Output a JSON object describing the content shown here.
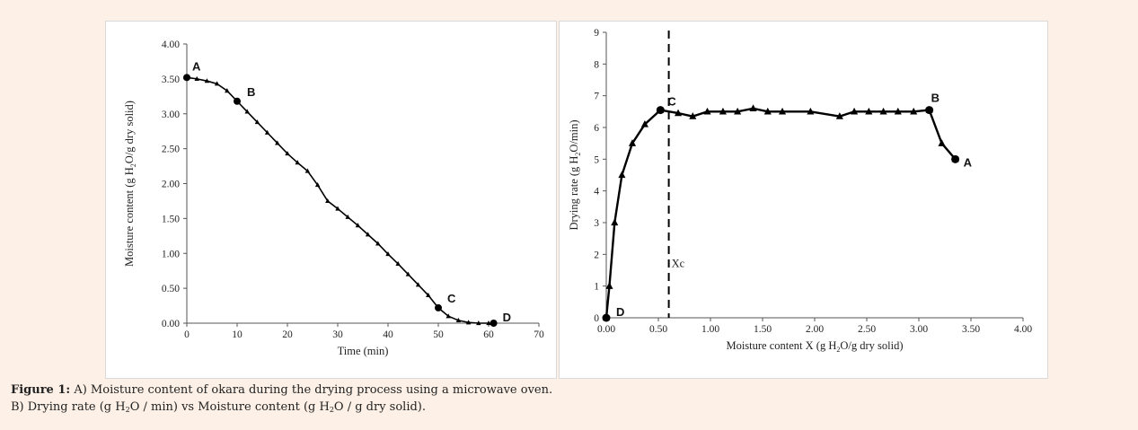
{
  "chart_data": [
    {
      "type": "line",
      "xlabel": "Time (min)",
      "ylabel": {
        "prefix": "Moisture content  (g H",
        "sub": "2",
        "suffix": "O/g dry solid)"
      },
      "xlim": [
        0,
        70
      ],
      "ylim": [
        0,
        4
      ],
      "x_ticks": [
        "0",
        "10",
        "20",
        "30",
        "40",
        "50",
        "60",
        "70"
      ],
      "y_ticks": [
        "0.00",
        "0.50",
        "1.00",
        "1.50",
        "2.00",
        "2.50",
        "3.00",
        "3.50",
        "4.00"
      ],
      "grid": false,
      "series": [
        {
          "marker": "triangle",
          "x": [
            0,
            2,
            4,
            6,
            8,
            10,
            12,
            14,
            16,
            18,
            20,
            22,
            24,
            26,
            28,
            30,
            32,
            34,
            36,
            38,
            40,
            42,
            44,
            46,
            48,
            50,
            52,
            54,
            56,
            58,
            60,
            61
          ],
          "y": [
            3.52,
            3.5,
            3.47,
            3.43,
            3.33,
            3.18,
            3.03,
            2.88,
            2.73,
            2.58,
            2.43,
            2.3,
            2.18,
            1.98,
            1.75,
            1.64,
            1.52,
            1.4,
            1.27,
            1.14,
            0.99,
            0.85,
            0.7,
            0.55,
            0.4,
            0.22,
            0.1,
            0.04,
            0.01,
            0.0,
            0.0,
            0.0
          ]
        }
      ],
      "annotations": [
        {
          "label": "A",
          "x": 0,
          "y": 3.52
        },
        {
          "label": "B",
          "x": 10,
          "y": 3.18
        },
        {
          "label": "C",
          "x": 50,
          "y": 0.22
        },
        {
          "label": "D",
          "x": 61,
          "y": 0.0
        }
      ]
    },
    {
      "type": "line",
      "xlabel": {
        "prefix": "Moisture content X (g H",
        "sub": "2",
        "suffix": "O/g dry solid)"
      },
      "ylabel": {
        "prefix": "Drying rate (g H",
        "sub": "2",
        "suffix": "O/min)"
      },
      "xlim": [
        0,
        4
      ],
      "ylim": [
        0,
        9
      ],
      "x_ticks": [
        "0.00",
        "0.50",
        "1.00",
        "1.50",
        "2.00",
        "2.50",
        "3.00",
        "3.50",
        "4.00"
      ],
      "y_ticks": [
        "0",
        "1",
        "2",
        "3",
        "4",
        "5",
        "6",
        "7",
        "8",
        "9"
      ],
      "grid": false,
      "series": [
        {
          "marker": "triangle",
          "x": [
            0.0,
            0.03,
            0.08,
            0.15,
            0.25,
            0.37,
            0.52,
            0.69,
            0.83,
            0.97,
            1.12,
            1.26,
            1.41,
            1.55,
            1.69,
            1.96,
            2.24,
            2.38,
            2.52,
            2.66,
            2.8,
            2.95,
            3.1,
            3.22,
            3.35
          ],
          "y": [
            0.0,
            1.0,
            3.0,
            4.5,
            5.5,
            6.1,
            6.55,
            6.45,
            6.35,
            6.5,
            6.5,
            6.5,
            6.6,
            6.5,
            6.5,
            6.5,
            6.35,
            6.5,
            6.5,
            6.5,
            6.5,
            6.5,
            6.55,
            5.5,
            5.0
          ]
        }
      ],
      "critical_line": {
        "label": "Xc",
        "x": 0.6
      },
      "annotations": [
        {
          "label": "A",
          "x": 3.35,
          "y": 5.0
        },
        {
          "label": "B",
          "x": 3.1,
          "y": 6.55
        },
        {
          "label": "C",
          "x": 0.52,
          "y": 6.55
        },
        {
          "label": "D",
          "x": 0.0,
          "y": 0.0
        }
      ]
    }
  ],
  "caption": {
    "title": "Figure 1:",
    "line1": "A) Moisture content of okara during the drying process using a microwave oven.",
    "line2_a": "B) Drying rate (g H",
    "line2_sub1": "2",
    "line2_b": "O / min) vs Moisture content (g H",
    "line2_sub2": "2",
    "line2_c": "O / g dry solid)."
  }
}
